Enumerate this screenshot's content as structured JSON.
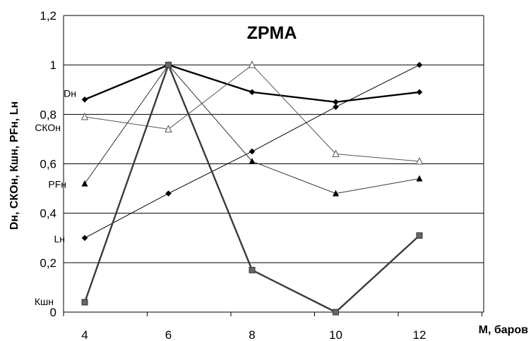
{
  "chart_data": {
    "type": "line",
    "title": "ZPMA",
    "xlabel": "М, баров",
    "ylabel": "Dн, СКОн, Кшн, PFн, Lн",
    "x": [
      4,
      6,
      8,
      10,
      12
    ],
    "x_tick_labels": [
      "4",
      "6",
      "8",
      "10",
      "12"
    ],
    "ylim": [
      0,
      1.2
    ],
    "y_tick_labels": [
      "0",
      "0,2",
      "0,4",
      "0,6",
      "0,8",
      "1",
      "1,2"
    ],
    "grid": "horizontal",
    "series": [
      {
        "name": "Dн",
        "values": [
          0.86,
          1.0,
          0.89,
          0.85,
          0.89
        ],
        "marker": "diamond",
        "color": "#000000",
        "width": 2.4
      },
      {
        "name": "СКОн",
        "values": [
          0.79,
          0.74,
          1.0,
          0.64,
          0.61
        ],
        "marker": "open-triangle",
        "color": "#555555",
        "width": 1
      },
      {
        "name": "PFн",
        "values": [
          0.52,
          1.0,
          0.61,
          0.48,
          0.54
        ],
        "marker": "triangle",
        "color": "#333333",
        "width": 1
      },
      {
        "name": "Lн",
        "values": [
          0.3,
          0.48,
          0.65,
          0.83,
          1.0
        ],
        "marker": "diamond",
        "color": "#000000",
        "width": 1
      },
      {
        "name": "Кшн",
        "values": [
          0.04,
          1.0,
          0.17,
          0.0,
          0.31
        ],
        "marker": "square",
        "color": "#3a3a3a",
        "width": 2.4
      }
    ]
  }
}
